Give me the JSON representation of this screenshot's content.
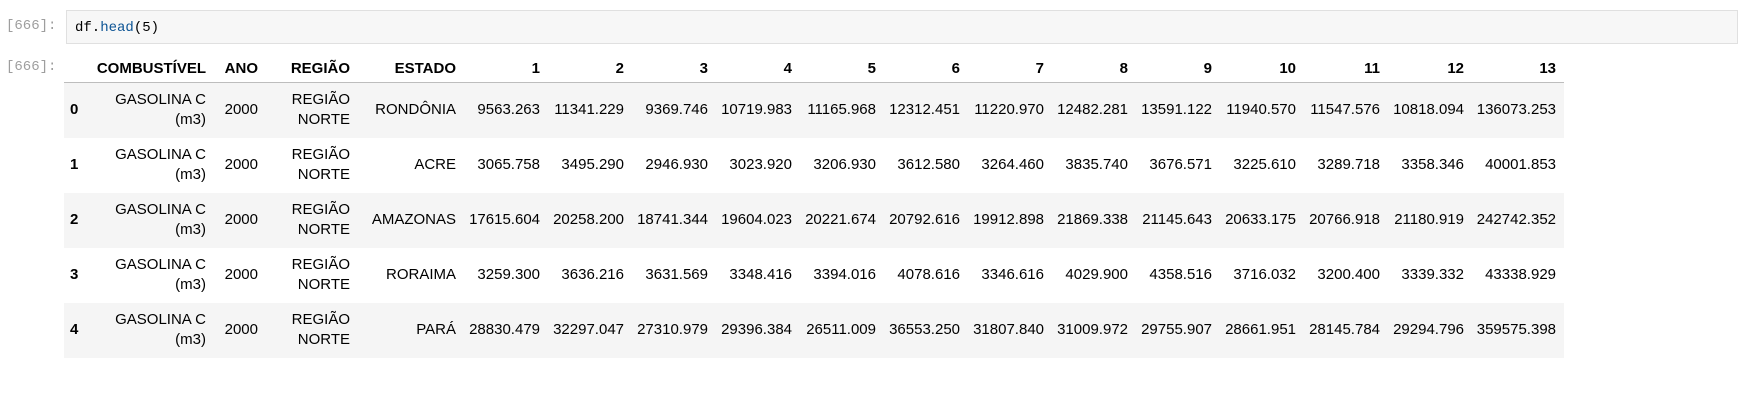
{
  "input_cell": {
    "prompt": "[666]:",
    "code_obj": "df.",
    "code_fn": "head",
    "code_args": "(5)"
  },
  "output_cell": {
    "prompt": "[666]:",
    "columns": [
      "",
      "COMBUSTÍVEL",
      "ANO",
      "REGIÃO",
      "ESTADO",
      "1",
      "2",
      "3",
      "4",
      "5",
      "6",
      "7",
      "8",
      "9",
      "10",
      "11",
      "12",
      "13"
    ],
    "rows": [
      {
        "index": "0",
        "combustivel": [
          "GASOLINA C",
          "(m3)"
        ],
        "ano": "2000",
        "regiao": [
          "REGIÃO",
          "NORTE"
        ],
        "estado": "RONDÔNIA",
        "values": [
          "9563.263",
          "11341.229",
          "9369.746",
          "10719.983",
          "11165.968",
          "12312.451",
          "11220.970",
          "12482.281",
          "13591.122",
          "11940.570",
          "11547.576",
          "10818.094",
          "136073.253"
        ]
      },
      {
        "index": "1",
        "combustivel": [
          "GASOLINA C",
          "(m3)"
        ],
        "ano": "2000",
        "regiao": [
          "REGIÃO",
          "NORTE"
        ],
        "estado": "ACRE",
        "values": [
          "3065.758",
          "3495.290",
          "2946.930",
          "3023.920",
          "3206.930",
          "3612.580",
          "3264.460",
          "3835.740",
          "3676.571",
          "3225.610",
          "3289.718",
          "3358.346",
          "40001.853"
        ]
      },
      {
        "index": "2",
        "combustivel": [
          "GASOLINA C",
          "(m3)"
        ],
        "ano": "2000",
        "regiao": [
          "REGIÃO",
          "NORTE"
        ],
        "estado": "AMAZONAS",
        "values": [
          "17615.604",
          "20258.200",
          "18741.344",
          "19604.023",
          "20221.674",
          "20792.616",
          "19912.898",
          "21869.338",
          "21145.643",
          "20633.175",
          "20766.918",
          "21180.919",
          "242742.352"
        ]
      },
      {
        "index": "3",
        "combustivel": [
          "GASOLINA C",
          "(m3)"
        ],
        "ano": "2000",
        "regiao": [
          "REGIÃO",
          "NORTE"
        ],
        "estado": "RORAIMA",
        "values": [
          "3259.300",
          "3636.216",
          "3631.569",
          "3348.416",
          "3394.016",
          "4078.616",
          "3346.616",
          "4029.900",
          "4358.516",
          "3716.032",
          "3200.400",
          "3339.332",
          "43338.929"
        ]
      },
      {
        "index": "4",
        "combustivel": [
          "GASOLINA C",
          "(m3)"
        ],
        "ano": "2000",
        "regiao": [
          "REGIÃO",
          "NORTE"
        ],
        "estado": "PARÁ",
        "values": [
          "28830.479",
          "32297.047",
          "27310.979",
          "29396.384",
          "26511.009",
          "36553.250",
          "31807.840",
          "31009.972",
          "29755.907",
          "28661.951",
          "28145.784",
          "29294.796",
          "359575.398"
        ]
      }
    ]
  }
}
